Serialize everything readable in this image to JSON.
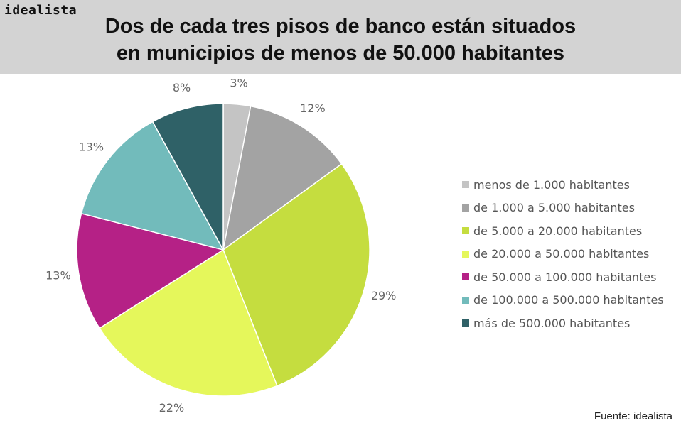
{
  "brand": "idealista",
  "title_line1": "Dos de cada tres pisos de banco están situados",
  "title_line2": "en municipios de menos de 50.000 habitantes",
  "source": "Fuente: idealista",
  "chart_data": {
    "type": "pie",
    "title": "Dos de cada tres pisos de banco están situados en municipios de menos de 50.000 habitantes",
    "legend_position": "right",
    "slices": [
      {
        "label": "menos de 1.000 habitantes",
        "value": 3,
        "value_label": "3%",
        "color": "#c4c4c4"
      },
      {
        "label": "de 1.000 a 5.000 habitantes",
        "value": 12,
        "value_label": "12%",
        "color": "#a3a3a3"
      },
      {
        "label": "de 5.000 a 20.000 habitantes",
        "value": 29,
        "value_label": "29%",
        "color": "#c5dd3f"
      },
      {
        "label": "de 20.000 a 50.000 habitantes",
        "value": 22,
        "value_label": "22%",
        "color": "#e5f75b"
      },
      {
        "label": "de 50.000 a 100.000 habitantes",
        "value": 13,
        "value_label": "13%",
        "color": "#b52186"
      },
      {
        "label": "de 100.000 a 500.000 habitantes",
        "value": 13,
        "value_label": "13%",
        "color": "#72bbbb"
      },
      {
        "label": "más de 500.000 habitantes",
        "value": 8,
        "value_label": "8%",
        "color": "#2f6167"
      }
    ]
  }
}
